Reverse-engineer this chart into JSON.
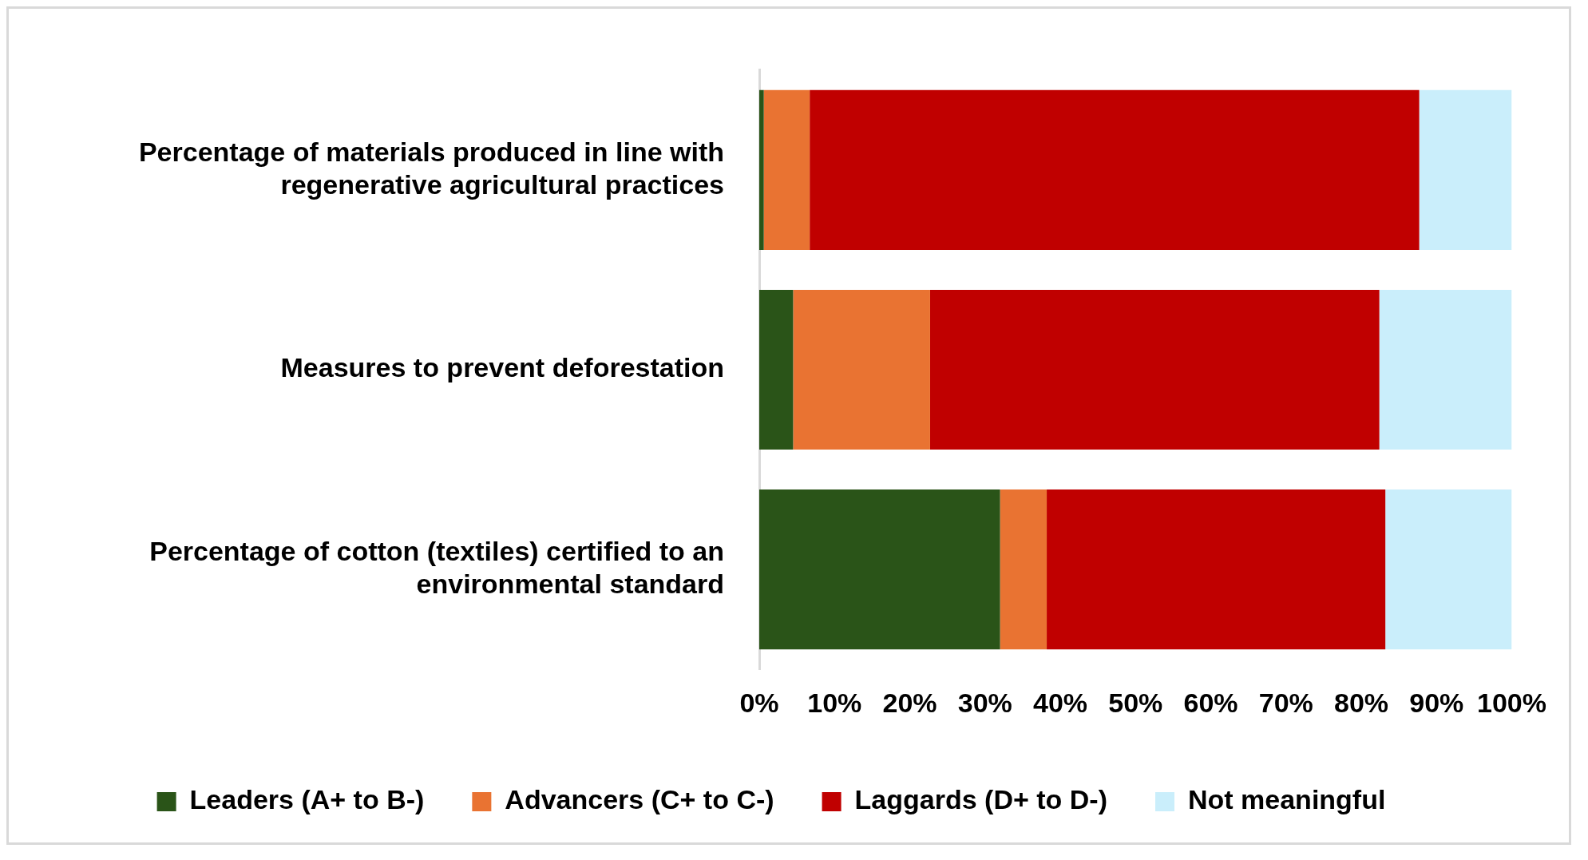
{
  "chart_data": {
    "type": "bar",
    "orientation": "horizontal",
    "stacked": true,
    "categories": [
      "Percentage of materials produced in line with regenerative agricultural practices",
      "Measures to prevent deforestation",
      "Percentage of cotton (textiles) certified to an environmental standard"
    ],
    "series": [
      {
        "name": "Leaders (A+ to B-)",
        "color": "#2a5418",
        "values": [
          0.6,
          4.5,
          32.0
        ]
      },
      {
        "name": "Advancers (C+ to C-)",
        "color": "#e97332",
        "values": [
          6.1,
          18.2,
          6.2
        ]
      },
      {
        "name": "Laggards (D+ to D-)",
        "color": "#c00000",
        "values": [
          81.0,
          59.7,
          45.0
        ]
      },
      {
        "name": "Not meaningful",
        "color": "#caeefb",
        "values": [
          12.3,
          17.6,
          16.8
        ]
      }
    ],
    "xlim": [
      0,
      100
    ],
    "xticks": [
      {
        "value": 0,
        "label": "0%"
      },
      {
        "value": 10,
        "label": "10%"
      },
      {
        "value": 20,
        "label": "20%"
      },
      {
        "value": 30,
        "label": "30%"
      },
      {
        "value": 40,
        "label": "40%"
      },
      {
        "value": 50,
        "label": "50%"
      },
      {
        "value": 60,
        "label": "60%"
      },
      {
        "value": 70,
        "label": "70%"
      },
      {
        "value": 80,
        "label": "80%"
      },
      {
        "value": 90,
        "label": "90%"
      },
      {
        "value": 100,
        "label": "100%"
      }
    ],
    "grid": false,
    "legend": "bottom"
  }
}
